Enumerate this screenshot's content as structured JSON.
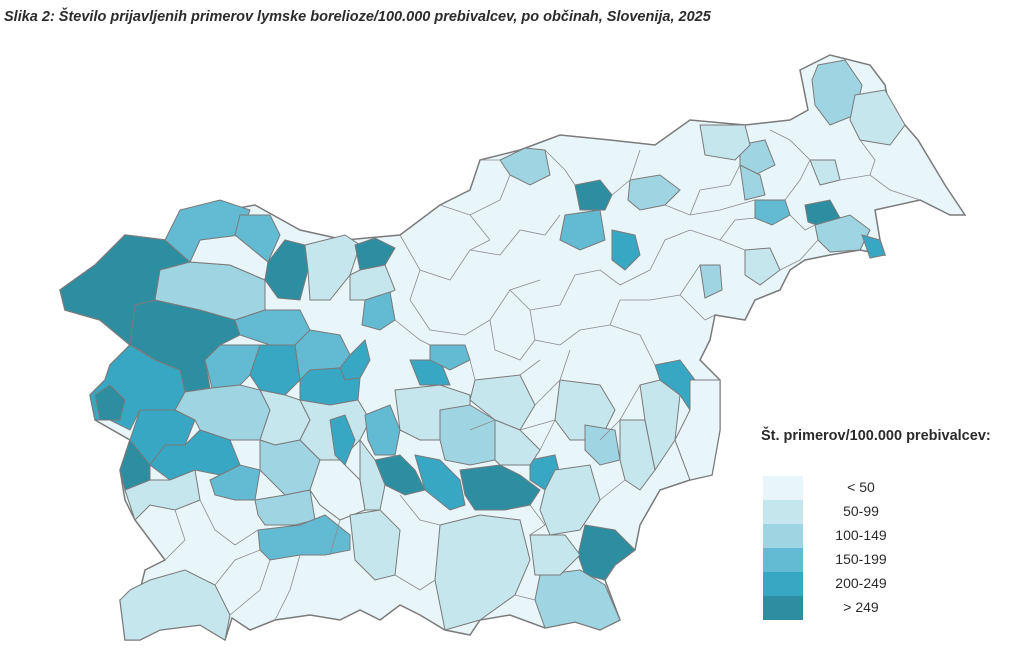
{
  "title": "Slika 2: Število prijavljenih primerov lymske borelioze/100.000 prebivalcev, po občinah, Slovenija, 2025",
  "legend": {
    "title": "Št. primerov/100.000 prebivalcev:",
    "classes": [
      {
        "label": "< 50",
        "color": "#e8f5f9"
      },
      {
        "label": "50-99",
        "color": "#c6e6ee"
      },
      {
        "label": "100-149",
        "color": "#9fd4e2"
      },
      {
        "label": "150-199",
        "color": "#62bbd3"
      },
      {
        "label": "200-249",
        "color": "#38a7c3"
      },
      {
        "label": "> 249",
        "color": "#2e8ea1"
      }
    ]
  },
  "map": {
    "region": "Slovenija",
    "unit_type": "občine",
    "border_color": "#7a7a7a"
  }
}
